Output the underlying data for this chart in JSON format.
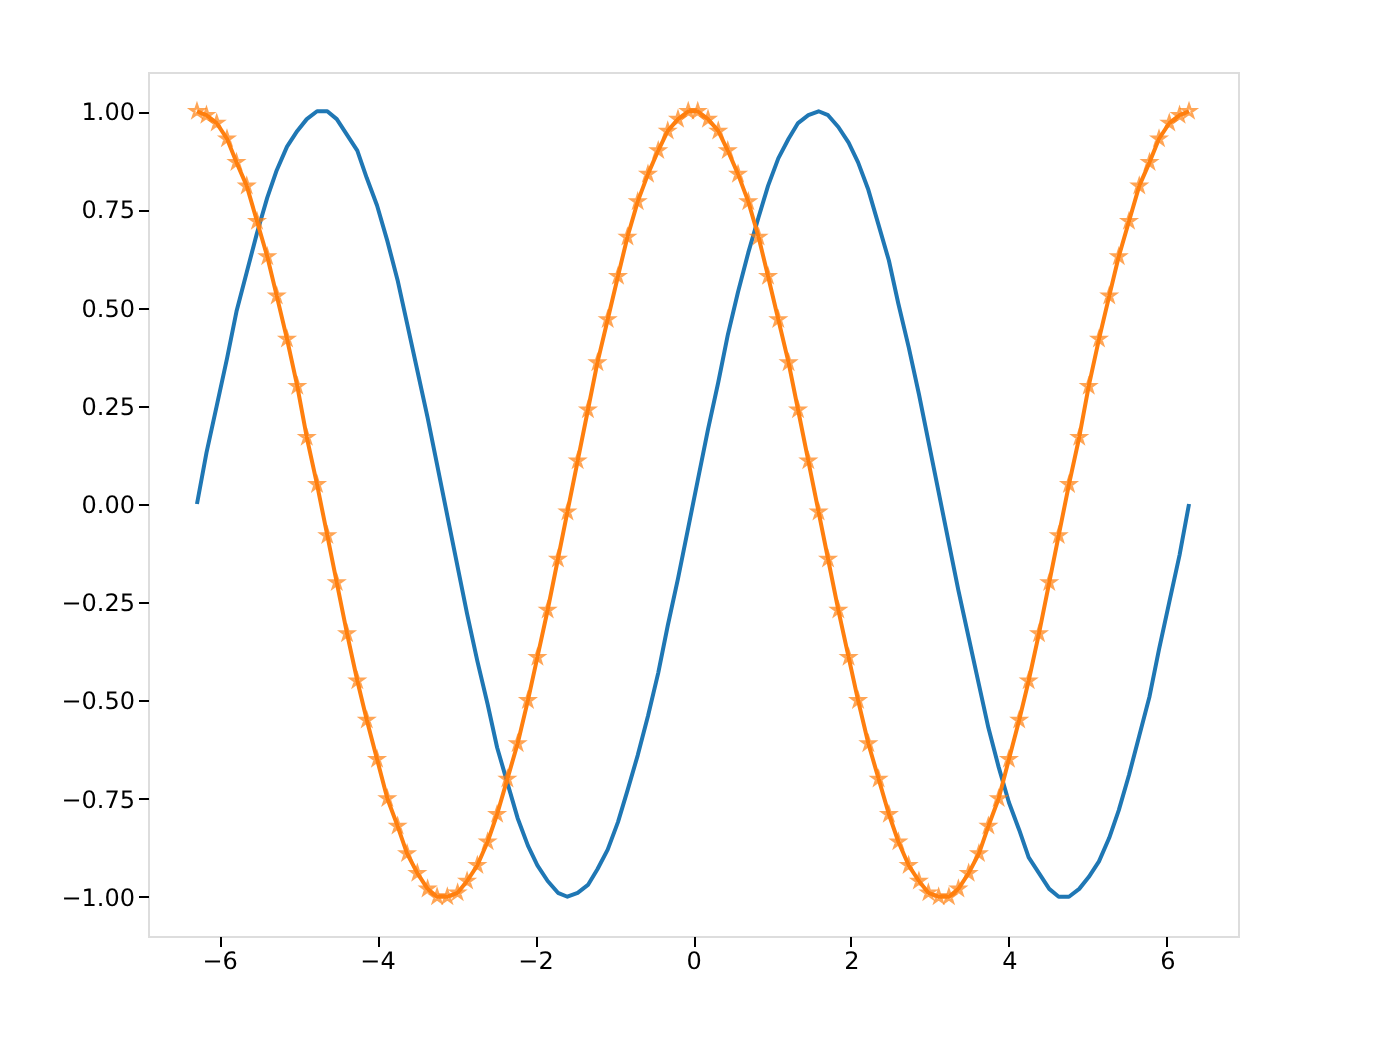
{
  "chart_data": {
    "type": "line",
    "x": [
      -6.28,
      -6.16,
      -6.03,
      -5.9,
      -5.78,
      -5.65,
      -5.52,
      -5.39,
      -5.27,
      -5.14,
      -5.01,
      -4.89,
      -4.76,
      -4.63,
      -4.51,
      -4.38,
      -4.25,
      -4.13,
      -4.0,
      -3.87,
      -3.74,
      -3.62,
      -3.49,
      -3.36,
      -3.24,
      -3.11,
      -2.98,
      -2.86,
      -2.73,
      -2.6,
      -2.48,
      -2.35,
      -2.22,
      -2.09,
      -1.97,
      -1.84,
      -1.71,
      -1.59,
      -1.46,
      -1.33,
      -1.21,
      -1.08,
      -0.95,
      -0.83,
      -0.7,
      -0.57,
      -0.44,
      -0.32,
      -0.19,
      -0.06,
      0.06,
      0.19,
      0.32,
      0.44,
      0.57,
      0.7,
      0.83,
      0.95,
      1.08,
      1.21,
      1.33,
      1.46,
      1.59,
      1.71,
      1.84,
      1.97,
      2.09,
      2.22,
      2.35,
      2.48,
      2.6,
      2.73,
      2.86,
      2.98,
      3.11,
      3.24,
      3.36,
      3.49,
      3.62,
      3.74,
      3.87,
      4.0,
      4.13,
      4.25,
      4.38,
      4.51,
      4.63,
      4.76,
      4.89,
      5.01,
      5.14,
      5.27,
      5.39,
      5.52,
      5.65,
      5.78,
      5.9,
      6.03,
      6.16,
      6.28
    ],
    "series": [
      {
        "color": "#1f77b4",
        "marker": "none",
        "values": [
          0.0,
          0.13,
          0.25,
          0.37,
          0.49,
          0.59,
          0.69,
          0.78,
          0.85,
          0.91,
          0.95,
          0.98,
          1.0,
          1.0,
          0.98,
          0.94,
          0.9,
          0.83,
          0.76,
          0.67,
          0.57,
          0.46,
          0.34,
          0.22,
          0.1,
          -0.03,
          -0.16,
          -0.28,
          -0.4,
          -0.51,
          -0.62,
          -0.71,
          -0.8,
          -0.87,
          -0.92,
          -0.96,
          -0.99,
          -1.0,
          -0.99,
          -0.97,
          -0.93,
          -0.88,
          -0.81,
          -0.73,
          -0.64,
          -0.54,
          -0.43,
          -0.31,
          -0.19,
          -0.06,
          0.06,
          0.19,
          0.31,
          0.43,
          0.54,
          0.64,
          0.73,
          0.81,
          0.88,
          0.93,
          0.97,
          0.99,
          1.0,
          0.99,
          0.96,
          0.92,
          0.87,
          0.8,
          0.71,
          0.62,
          0.51,
          0.4,
          0.28,
          0.16,
          0.03,
          -0.1,
          -0.22,
          -0.34,
          -0.46,
          -0.57,
          -0.67,
          -0.76,
          -0.83,
          -0.9,
          -0.94,
          -0.98,
          -1.0,
          -1.0,
          -0.98,
          -0.95,
          -0.91,
          -0.85,
          -0.78,
          -0.69,
          -0.59,
          -0.49,
          -0.37,
          -0.25,
          -0.13,
          0.0
        ]
      },
      {
        "color": "#ff7f0e",
        "marker": "star",
        "values": [
          1.0,
          0.99,
          0.97,
          0.93,
          0.87,
          0.81,
          0.72,
          0.63,
          0.53,
          0.42,
          0.3,
          0.17,
          0.05,
          -0.08,
          -0.2,
          -0.33,
          -0.45,
          -0.55,
          -0.65,
          -0.75,
          -0.82,
          -0.89,
          -0.94,
          -0.98,
          -1.0,
          -1.0,
          -0.99,
          -0.96,
          -0.92,
          -0.86,
          -0.79,
          -0.7,
          -0.61,
          -0.5,
          -0.39,
          -0.27,
          -0.14,
          -0.02,
          0.11,
          0.24,
          0.36,
          0.47,
          0.58,
          0.68,
          0.77,
          0.84,
          0.9,
          0.95,
          0.98,
          1.0,
          1.0,
          0.98,
          0.95,
          0.9,
          0.84,
          0.77,
          0.68,
          0.58,
          0.47,
          0.36,
          0.24,
          0.11,
          -0.02,
          -0.14,
          -0.27,
          -0.39,
          -0.5,
          -0.61,
          -0.7,
          -0.79,
          -0.86,
          -0.92,
          -0.96,
          -0.99,
          -1.0,
          -1.0,
          -0.98,
          -0.94,
          -0.89,
          -0.82,
          -0.75,
          -0.65,
          -0.55,
          -0.45,
          -0.33,
          -0.2,
          -0.08,
          0.05,
          0.17,
          0.3,
          0.42,
          0.53,
          0.63,
          0.72,
          0.81,
          0.87,
          0.93,
          0.97,
          0.99,
          1.0
        ]
      }
    ],
    "xlim": [
      -6.9,
      6.9
    ],
    "xticks": [
      -6,
      -4,
      -2,
      0,
      2,
      4,
      6
    ],
    "ylim": [
      -1.1,
      1.1
    ],
    "yticks": [
      {
        "value": -1,
        "label": "−1.00"
      },
      {
        "value": -0.75,
        "label": "−0.75"
      },
      {
        "value": -0.5,
        "label": "−0.50"
      },
      {
        "value": -0.25,
        "label": "−0.25"
      },
      {
        "value": 0,
        "label": "0.00"
      },
      {
        "value": 0.25,
        "label": "0.25"
      },
      {
        "value": 0.5,
        "label": "0.50"
      },
      {
        "value": 0.75,
        "label": "0.75"
      },
      {
        "value": 1,
        "label": "1.00"
      }
    ],
    "grid": false,
    "legend": false,
    "line_style": "solid"
  }
}
